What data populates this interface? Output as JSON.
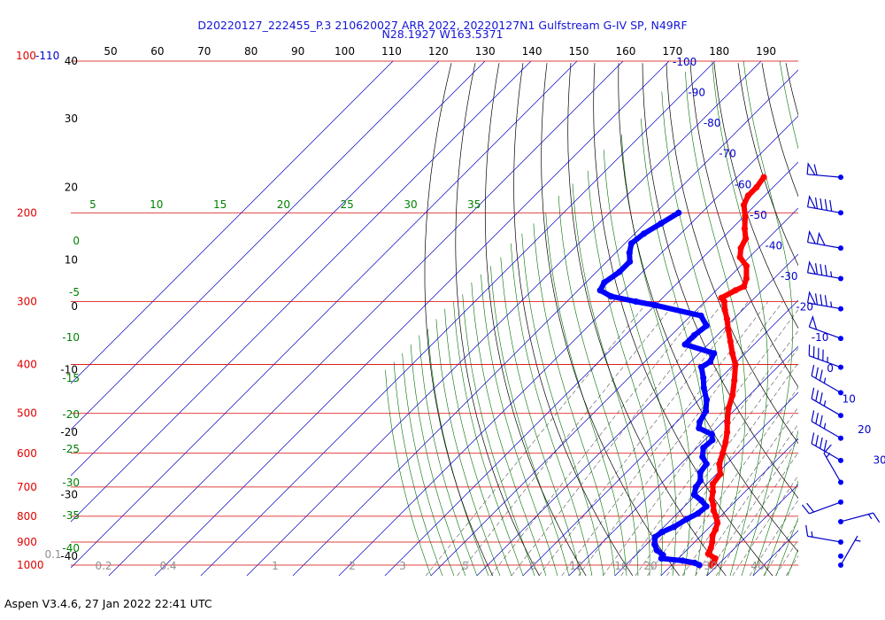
{
  "header": {
    "title_line1": "D20220127_222455_P.3 210620027 ARR 2022, 20220127N1 Gulfstream G-IV SP, N49RF",
    "title_line2": "N28.1927 W163.5371"
  },
  "footer": {
    "version": "Aspen V3.4.6, 27 Jan 2022  22:41 UTC"
  },
  "chart_data": {
    "type": "skew-t",
    "title": "D20220127_222455_P.3 210620027 ARR 2022, 20220127N1 Gulfstream G-IV SP, N49RF",
    "subtitle": "N28.1927 W163.5371",
    "pressure_axis": {
      "unit": "hPa",
      "top_label": "100-110",
      "labels": [
        {
          "label": "200",
          "value": 200
        },
        {
          "label": "300",
          "value": 300
        },
        {
          "label": "400",
          "value": 400
        },
        {
          "label": "500",
          "value": 500
        },
        {
          "label": "600",
          "value": 600
        },
        {
          "label": "700",
          "value": 700
        },
        {
          "label": "800",
          "value": 800
        },
        {
          "label": "900",
          "value": 900
        },
        {
          "label": "1000",
          "value": 1000
        }
      ]
    },
    "height_axis_labels": [
      {
        "label": "40",
        "pressure": 100
      },
      {
        "label": "30",
        "pressure": 130
      },
      {
        "label": "20",
        "pressure": 178
      },
      {
        "label": "10",
        "pressure": 248
      },
      {
        "label": "0",
        "pressure": 307
      },
      {
        "label": "-10",
        "pressure": 410
      },
      {
        "label": "-20",
        "pressure": 545
      },
      {
        "label": "-30",
        "pressure": 725
      },
      {
        "label": "-40",
        "pressure": 960
      }
    ],
    "theta_axis_labels": [
      "50",
      "60",
      "70",
      "80",
      "90",
      "100",
      "110",
      "120",
      "130",
      "140",
      "150",
      "160",
      "170",
      "180",
      "190"
    ],
    "isotherm_labels": [
      {
        "label": "-100",
        "t": -100
      },
      {
        "label": "-90",
        "t": -90
      },
      {
        "label": "-80",
        "t": -80
      },
      {
        "label": "-70",
        "t": -70
      },
      {
        "label": "-60",
        "t": -60
      },
      {
        "label": "-50",
        "t": -50
      },
      {
        "label": "-40",
        "t": -40
      },
      {
        "label": "-30",
        "t": -30
      },
      {
        "label": "-20",
        "t": -20
      },
      {
        "label": "-10",
        "t": -10
      },
      {
        "label": "0",
        "t": 0
      },
      {
        "label": "10",
        "t": 10
      },
      {
        "label": "20",
        "t": 20
      },
      {
        "label": "30",
        "t": 30
      }
    ],
    "moist_adiabat_top_labels": [
      "5",
      "10",
      "15",
      "20",
      "25",
      "30",
      "35"
    ],
    "moist_adiabat_left_labels": [
      "0",
      "-5",
      "-10",
      "-15",
      "-20",
      "-25",
      "-30",
      "-35",
      "-40"
    ],
    "mixing_ratio_labels": [
      "0.1",
      "0.2",
      "0.4",
      "1",
      "2",
      "3",
      "5",
      "8",
      "12",
      "16",
      "20",
      "30",
      "40"
    ],
    "temperature_profile": {
      "color": "#ff0000",
      "points": [
        {
          "p": 1000,
          "t": 18.5
        },
        {
          "p": 985,
          "t": 18.5
        },
        {
          "p": 970,
          "t": 18.0
        },
        {
          "p": 950,
          "t": 15.5
        },
        {
          "p": 925,
          "t": 14.8
        },
        {
          "p": 900,
          "t": 13.8
        },
        {
          "p": 875,
          "t": 12.5
        },
        {
          "p": 850,
          "t": 11.8
        },
        {
          "p": 825,
          "t": 10.8
        },
        {
          "p": 800,
          "t": 9.0
        },
        {
          "p": 780,
          "t": 7.3
        },
        {
          "p": 760,
          "t": 6.0
        },
        {
          "p": 740,
          "t": 4.4
        },
        {
          "p": 715,
          "t": 3.0
        },
        {
          "p": 690,
          "t": 1.3
        },
        {
          "p": 660,
          "t": 0.8
        },
        {
          "p": 630,
          "t": -1.6
        },
        {
          "p": 600,
          "t": -3.2
        },
        {
          "p": 570,
          "t": -5.0
        },
        {
          "p": 545,
          "t": -6.8
        },
        {
          "p": 520,
          "t": -9.0
        },
        {
          "p": 490,
          "t": -11.6
        },
        {
          "p": 460,
          "t": -13.7
        },
        {
          "p": 430,
          "t": -16.5
        },
        {
          "p": 400,
          "t": -19.7
        },
        {
          "p": 380,
          "t": -22.8
        },
        {
          "p": 360,
          "t": -25.8
        },
        {
          "p": 340,
          "t": -29.0
        },
        {
          "p": 325,
          "t": -31.4
        },
        {
          "p": 312,
          "t": -33.8
        },
        {
          "p": 300,
          "t": -35.8
        },
        {
          "p": 295,
          "t": -37.2
        },
        {
          "p": 285,
          "t": -35.8
        },
        {
          "p": 280,
          "t": -34.8
        },
        {
          "p": 270,
          "t": -36.0
        },
        {
          "p": 255,
          "t": -38.7
        },
        {
          "p": 245,
          "t": -42.0
        },
        {
          "p": 235,
          "t": -43.8
        },
        {
          "p": 225,
          "t": -44.8
        },
        {
          "p": 215,
          "t": -47.2
        },
        {
          "p": 203,
          "t": -49.8
        },
        {
          "p": 193,
          "t": -52.5
        },
        {
          "p": 185,
          "t": -53.6
        },
        {
          "p": 178,
          "t": -53.6
        },
        {
          "p": 170,
          "t": -54.2
        }
      ]
    },
    "dewpoint_profile": {
      "color": "#0000ff",
      "points": [
        {
          "p": 1000,
          "t": 16.0
        },
        {
          "p": 990,
          "t": 14.5
        },
        {
          "p": 980,
          "t": 11.4
        },
        {
          "p": 970,
          "t": 6.3
        },
        {
          "p": 955,
          "t": 5.9
        },
        {
          "p": 935,
          "t": 3.6
        },
        {
          "p": 910,
          "t": 1.8
        },
        {
          "p": 880,
          "t": 0.3
        },
        {
          "p": 860,
          "t": 0.7
        },
        {
          "p": 840,
          "t": 2.2
        },
        {
          "p": 810,
          "t": 3.3
        },
        {
          "p": 790,
          "t": 4.5
        },
        {
          "p": 765,
          "t": 4.8
        },
        {
          "p": 745,
          "t": 2.5
        },
        {
          "p": 725,
          "t": -0.4
        },
        {
          "p": 700,
          "t": -1.7
        },
        {
          "p": 680,
          "t": -2.1
        },
        {
          "p": 655,
          "t": -3.9
        },
        {
          "p": 630,
          "t": -4.4
        },
        {
          "p": 610,
          "t": -6.8
        },
        {
          "p": 585,
          "t": -8.6
        },
        {
          "p": 565,
          "t": -8.3
        },
        {
          "p": 550,
          "t": -9.7
        },
        {
          "p": 535,
          "t": -13.8
        },
        {
          "p": 520,
          "t": -15.0
        },
        {
          "p": 495,
          "t": -16.0
        },
        {
          "p": 470,
          "t": -18.3
        },
        {
          "p": 445,
          "t": -21.5
        },
        {
          "p": 425,
          "t": -23.8
        },
        {
          "p": 405,
          "t": -26.5
        },
        {
          "p": 395,
          "t": -25.8
        },
        {
          "p": 380,
          "t": -26.8
        },
        {
          "p": 365,
          "t": -35.0
        },
        {
          "p": 350,
          "t": -35.0
        },
        {
          "p": 335,
          "t": -34.4
        },
        {
          "p": 320,
          "t": -37.8
        },
        {
          "p": 305,
          "t": -50.0
        },
        {
          "p": 300,
          "t": -55.0
        },
        {
          "p": 293,
          "t": -61.5
        },
        {
          "p": 285,
          "t": -65.2
        },
        {
          "p": 275,
          "t": -66.0
        },
        {
          "p": 262,
          "t": -65.0
        },
        {
          "p": 250,
          "t": -65.0
        },
        {
          "p": 240,
          "t": -67.0
        },
        {
          "p": 230,
          "t": -68.6
        },
        {
          "p": 220,
          "t": -68.0
        },
        {
          "p": 210,
          "t": -66.5
        },
        {
          "p": 200,
          "t": -65.0
        }
      ]
    },
    "wind_barbs": [
      {
        "p": 170,
        "speed_kt": 60,
        "dir_deg": 275
      },
      {
        "p": 200,
        "speed_kt": 90,
        "dir_deg": 280
      },
      {
        "p": 235,
        "speed_kt": 100,
        "dir_deg": 280
      },
      {
        "p": 270,
        "speed_kt": 85,
        "dir_deg": 280
      },
      {
        "p": 310,
        "speed_kt": 85,
        "dir_deg": 280
      },
      {
        "p": 355,
        "speed_kt": 50,
        "dir_deg": 290
      },
      {
        "p": 405,
        "speed_kt": 45,
        "dir_deg": 290
      },
      {
        "p": 455,
        "speed_kt": 35,
        "dir_deg": 300
      },
      {
        "p": 505,
        "speed_kt": 35,
        "dir_deg": 300
      },
      {
        "p": 560,
        "speed_kt": 35,
        "dir_deg": 300
      },
      {
        "p": 620,
        "speed_kt": 40,
        "dir_deg": 300
      },
      {
        "p": 685,
        "speed_kt": 15,
        "dir_deg": 330
      },
      {
        "p": 750,
        "speed_kt": 20,
        "dir_deg": 250
      },
      {
        "p": 820,
        "speed_kt": 15,
        "dir_deg": 75
      },
      {
        "p": 900,
        "speed_kt": 15,
        "dir_deg": 280
      },
      {
        "p": 960,
        "speed_kt": 0,
        "dir_deg": 0
      },
      {
        "p": 1000,
        "speed_kt": 5,
        "dir_deg": 30
      }
    ],
    "grid": true,
    "colors": {
      "isobar": "#d80000",
      "isotherm": "#0000c8",
      "dry_adiabat": "#000000",
      "moist_adiabat": "#007000",
      "mixing_ratio": "#555555",
      "pressure_label": "#e00000",
      "isotherm_label": "#0000c8",
      "moist_label": "#008000",
      "mixing_label": "#909090"
    }
  }
}
